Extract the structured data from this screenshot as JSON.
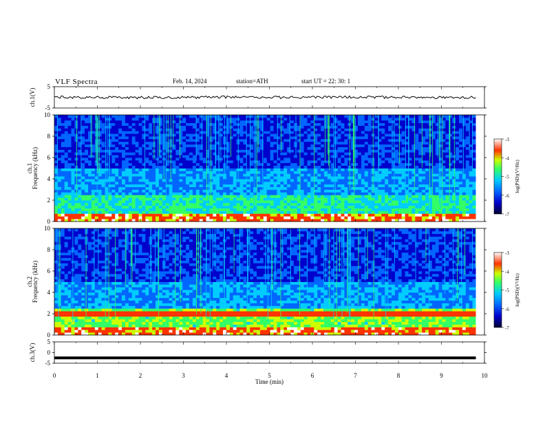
{
  "header": {
    "title": "VLF  Spectra",
    "date": "Feb. 14, 2024",
    "station": "station=ATH",
    "start": "start  UT  =    22: 30: 1"
  },
  "chart_data": [
    {
      "type": "line",
      "title": "",
      "ylabel": "ch.1(V)",
      "ylim": [
        -5,
        5
      ],
      "y_ticks": [
        "5",
        "-5"
      ],
      "x": [
        0,
        1,
        2,
        3,
        4,
        5,
        6,
        7,
        8,
        9,
        9.8
      ],
      "values": [
        0.1,
        0.0,
        -0.1,
        0.0,
        0.1,
        0.0,
        0.0,
        0.1,
        0.0,
        -0.1,
        0.0
      ]
    },
    {
      "type": "heatmap",
      "ylabel": "ch.1\nFrequency (kHz)",
      "ylim": [
        0,
        10
      ],
      "y_ticks": [
        "0",
        "2",
        "4",
        "6",
        "8",
        "10"
      ],
      "colorbar": {
        "label": "log(PSD)(V²/Hz)",
        "ticks": [
          "-3",
          "-4",
          "-5",
          "-6",
          "-7"
        ],
        "range": [
          -7,
          -3
        ]
      }
    },
    {
      "type": "heatmap",
      "ylabel": "ch.2\nFrequency (kHz)",
      "ylim": [
        0,
        10
      ],
      "y_ticks": [
        "0",
        "2",
        "4",
        "6",
        "8",
        "10"
      ],
      "colorbar": {
        "label": "log(PSD)(V²/Hz)",
        "ticks": [
          "-3",
          "-4",
          "-5",
          "-6",
          "-7"
        ],
        "range": [
          -7,
          -3
        ]
      }
    },
    {
      "type": "line",
      "ylabel": "ch.3(V)",
      "ylim": [
        -5,
        5
      ],
      "y_ticks": [
        "5",
        "0",
        "-5"
      ],
      "x": [
        0,
        9.8
      ],
      "values": [
        -2.5,
        -2.5
      ]
    }
  ],
  "x_axis": {
    "label": "Time  (min)",
    "ticks": [
      "0",
      "1",
      "2",
      "3",
      "4",
      "5",
      "6",
      "7",
      "8",
      "9",
      "10"
    ],
    "range": [
      0,
      10
    ]
  },
  "colors": {
    "background": "#ffffff",
    "axis": "#000000",
    "cmap": [
      "#000033",
      "#0000cc",
      "#0066ff",
      "#00ccff",
      "#33ff66",
      "#ccff00",
      "#ff3300",
      "#ffffff"
    ]
  }
}
